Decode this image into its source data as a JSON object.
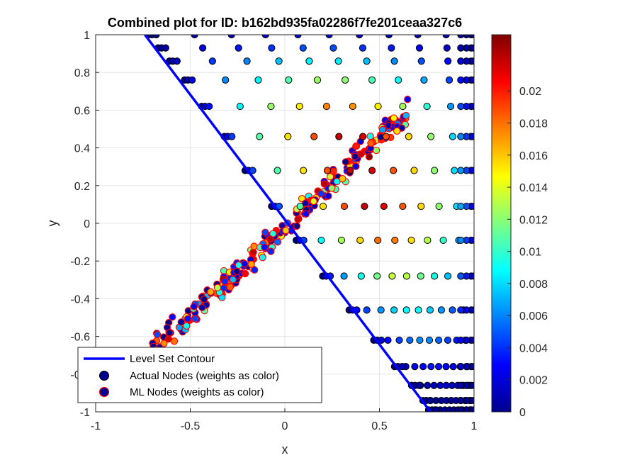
{
  "chart_data": {
    "type": "scatter",
    "title": "Combined plot for ID: b162bd935fa02286f7fe201ceaa327c6",
    "xlabel": "x",
    "ylabel": "y",
    "xlim": [
      -1,
      1
    ],
    "ylim": [
      -1,
      1
    ],
    "x_ticks": [
      "-1",
      "-0.5",
      "0",
      "0.5",
      "1"
    ],
    "y_ticks": [
      "-1",
      "-0.8",
      "-0.6",
      "-0.4",
      "-0.2",
      "0",
      "0.2",
      "0.4",
      "0.6",
      "0.8",
      "1"
    ],
    "grid": true,
    "colormap": "jet",
    "colorbar": {
      "range": [
        0,
        0.0235
      ],
      "ticks": [
        "0",
        "0.002",
        "0.004",
        "0.006",
        "0.008",
        "0.01",
        "0.012",
        "0.014",
        "0.016",
        "0.018",
        "0.02"
      ]
    },
    "legend": {
      "placement": "bottom-left",
      "entries": [
        "Level Set Contour",
        "Actual Nodes (weights as color)",
        "ML Nodes (weights as color)"
      ]
    },
    "contour": {
      "name": "Level Set Contour",
      "color": "#0000ff",
      "x": [
        -0.74,
        0.77
      ],
      "y": [
        1.0,
        -1.0
      ]
    },
    "actual_rows": [
      {
        "y": 1.0,
        "x_start": -0.72,
        "w_max": 0.002
      },
      {
        "y": 0.93,
        "x_start": -0.67,
        "w_max": 0.005
      },
      {
        "y": 0.86,
        "x_start": -0.61,
        "w_max": 0.009
      },
      {
        "y": 0.76,
        "x_start": -0.53,
        "w_max": 0.013
      },
      {
        "y": 0.62,
        "x_start": -0.44,
        "w_max": 0.0185
      },
      {
        "y": 0.46,
        "x_start": -0.32,
        "w_max": 0.023
      },
      {
        "y": 0.28,
        "x_start": -0.21,
        "w_max": 0.023
      },
      {
        "y": 0.09,
        "x_start": -0.07,
        "w_max": 0.023
      },
      {
        "y": -0.09,
        "x_start": 0.06,
        "w_max": 0.019
      },
      {
        "y": -0.28,
        "x_start": 0.2,
        "w_max": 0.014
      },
      {
        "y": -0.46,
        "x_start": 0.34,
        "w_max": 0.0095
      },
      {
        "y": -0.62,
        "x_start": 0.47,
        "w_max": 0.0065
      },
      {
        "y": -0.76,
        "x_start": 0.58,
        "w_max": 0.0035
      },
      {
        "y": -0.86,
        "x_start": 0.67,
        "w_max": 0.0018
      },
      {
        "y": -0.94,
        "x_start": 0.73,
        "w_max": 0.0008
      },
      {
        "y": -0.99,
        "x_start": 0.76,
        "w_max": 0.0004
      }
    ],
    "ml_cluster": {
      "x_range": [
        -0.75,
        0.66
      ],
      "y_at_x": [
        -0.72,
        0.6
      ],
      "spread": 0.06,
      "count": 260
    }
  }
}
